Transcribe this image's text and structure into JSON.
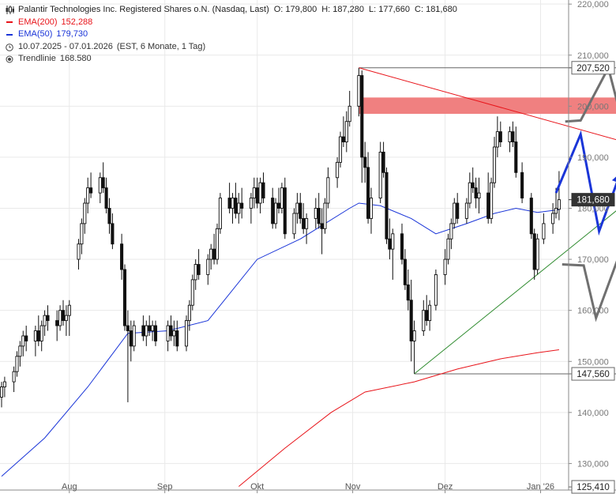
{
  "header": {
    "title": "Palantir Technologies Inc. Registered Shares o.N. (Nasdaq, Last)",
    "ohlc": [
      {
        "label": "O:",
        "value": "179,800"
      },
      {
        "label": "H:",
        "value": "187,280"
      },
      {
        "label": "L:",
        "value": "177,660"
      },
      {
        "label": "C:",
        "value": "181,680"
      }
    ]
  },
  "legend": [
    {
      "label": "EMA(200)",
      "value": "152,288",
      "color": "#e8141a",
      "icon": "red-line-icon"
    },
    {
      "label": "EMA(50)",
      "value": "179,730",
      "color": "#1a35d8",
      "icon": "blue-line-icon"
    },
    {
      "label": "10.07.2025 - 07.01.2026",
      "value": "(EST, 6 Monate, 1 Tag)",
      "color": "#444444",
      "icon": "clock-icon"
    },
    {
      "label": "Trendlinie",
      "value": "168.580",
      "color": "#444444",
      "icon": "target-icon"
    }
  ],
  "chart_data": {
    "type": "candlestick",
    "y_axis": {
      "min": 125000,
      "max": 220000,
      "side": "right",
      "ticks": [
        "130,000",
        "140,000",
        "150,000",
        "160,000",
        "170,000",
        "180,000",
        "190,000",
        "200,000",
        "210,000",
        "220,000"
      ],
      "tick_values": [
        130000,
        140000,
        150000,
        160000,
        170000,
        180000,
        190000,
        200000,
        210000,
        220000
      ]
    },
    "x_axis": {
      "start": "2025-07-10",
      "end": "2026-01-07",
      "span_end": "2026-02-12",
      "ticks": [
        {
          "date": "2025-08-01",
          "label": "Aug"
        },
        {
          "date": "2025-09-01",
          "label": "Sep"
        },
        {
          "date": "2025-10-01",
          "label": "Okt"
        },
        {
          "date": "2025-11-01",
          "label": "Nov"
        },
        {
          "date": "2025-12-01",
          "label": "Dez"
        },
        {
          "date": "2026-01-01",
          "label": "Jan '26"
        }
      ]
    },
    "price_labels": [
      {
        "value": 207520,
        "text": "207,520",
        "style": "box"
      },
      {
        "value": 181680,
        "text": "181,680",
        "style": "dark"
      },
      {
        "value": 147560,
        "text": "147,560",
        "style": "box"
      },
      {
        "value": 125410,
        "text": "125,410",
        "style": "box"
      }
    ],
    "candles": [
      [
        "2025-07-10",
        143,
        146,
        141,
        145
      ],
      [
        "2025-07-11",
        145,
        147,
        143,
        146
      ],
      [
        "2025-07-14",
        146,
        149,
        144,
        148
      ],
      [
        "2025-07-15",
        148,
        152,
        147,
        151
      ],
      [
        "2025-07-16",
        151,
        154,
        149,
        153
      ],
      [
        "2025-07-17",
        153,
        156,
        151,
        155
      ],
      [
        "2025-07-18",
        155,
        157,
        152,
        154
      ],
      [
        "2025-07-21",
        154,
        157,
        151,
        156
      ],
      [
        "2025-07-22",
        156,
        159,
        153,
        154
      ],
      [
        "2025-07-23",
        154,
        158,
        152,
        157
      ],
      [
        "2025-07-24",
        157,
        160,
        155,
        159
      ],
      [
        "2025-07-25",
        159,
        161,
        156,
        158
      ],
      [
        "2025-07-28",
        158,
        160,
        154,
        157
      ],
      [
        "2025-07-29",
        157,
        161,
        156,
        160
      ],
      [
        "2025-07-30",
        160,
        162,
        157,
        158
      ],
      [
        "2025-07-31",
        158,
        161,
        155,
        159
      ],
      [
        "2025-08-01",
        159,
        162,
        155,
        161
      ],
      [
        "2025-08-04",
        170,
        174,
        168,
        173
      ],
      [
        "2025-08-05",
        173,
        178,
        171,
        177
      ],
      [
        "2025-08-06",
        177,
        182,
        175,
        181
      ],
      [
        "2025-08-07",
        181,
        186,
        179,
        184
      ],
      [
        "2025-08-08",
        184,
        187,
        182,
        183
      ],
      [
        "2025-08-11",
        183,
        187,
        181,
        186
      ],
      [
        "2025-08-12",
        186,
        189,
        183,
        184
      ],
      [
        "2025-08-13",
        184,
        186,
        179,
        180
      ],
      [
        "2025-08-14",
        180,
        182,
        175,
        177
      ],
      [
        "2025-08-15",
        177,
        179,
        172,
        173
      ],
      [
        "2025-08-18",
        173,
        175,
        166,
        168
      ],
      [
        "2025-08-19",
        168,
        169,
        156,
        157
      ],
      [
        "2025-08-20",
        157,
        160,
        142,
        156
      ],
      [
        "2025-08-21",
        156,
        158,
        150,
        153
      ],
      [
        "2025-08-22",
        153,
        158,
        152,
        157
      ],
      [
        "2025-08-25",
        157,
        159,
        154,
        155
      ],
      [
        "2025-08-26",
        155,
        158,
        153,
        157
      ],
      [
        "2025-08-27",
        157,
        159,
        155,
        156
      ],
      [
        "2025-08-28",
        156,
        158,
        154,
        157
      ],
      [
        "2025-08-29",
        157,
        158,
        153,
        154
      ],
      [
        "2025-09-02",
        154,
        158,
        152,
        157
      ],
      [
        "2025-09-03",
        157,
        159,
        154,
        155
      ],
      [
        "2025-09-04",
        155,
        158,
        153,
        156
      ],
      [
        "2025-09-05",
        156,
        158,
        152,
        153
      ],
      [
        "2025-09-08",
        153,
        159,
        152,
        158
      ],
      [
        "2025-09-09",
        158,
        162,
        156,
        161
      ],
      [
        "2025-09-10",
        161,
        167,
        160,
        166
      ],
      [
        "2025-09-11",
        166,
        170,
        164,
        169
      ],
      [
        "2025-09-12",
        169,
        172,
        166,
        167
      ],
      [
        "2025-09-15",
        167,
        171,
        165,
        170
      ],
      [
        "2025-09-16",
        170,
        173,
        168,
        172
      ],
      [
        "2025-09-17",
        172,
        175,
        169,
        170
      ],
      [
        "2025-09-18",
        170,
        177,
        169,
        176
      ],
      [
        "2025-09-19",
        176,
        183,
        175,
        182
      ],
      [
        "2025-09-22",
        182,
        185,
        179,
        180
      ],
      [
        "2025-09-23",
        180,
        183,
        177,
        182
      ],
      [
        "2025-09-24",
        182,
        185,
        178,
        179
      ],
      [
        "2025-09-25",
        179,
        183,
        177,
        181
      ],
      [
        "2025-09-26",
        181,
        184,
        178,
        180
      ],
      [
        "2025-09-29",
        180,
        183,
        177,
        182
      ],
      [
        "2025-09-30",
        182,
        186,
        180,
        184
      ],
      [
        "2025-10-01",
        184,
        186,
        180,
        181
      ],
      [
        "2025-10-02",
        181,
        186,
        179,
        185
      ],
      [
        "2025-10-03",
        185,
        187,
        181,
        182
      ],
      [
        "2025-10-06",
        182,
        184,
        176,
        177
      ],
      [
        "2025-10-07",
        177,
        182,
        176,
        181
      ],
      [
        "2025-10-08",
        181,
        184,
        179,
        180
      ],
      [
        "2025-10-09",
        180,
        185,
        179,
        184
      ],
      [
        "2025-10-10",
        184,
        186,
        174,
        175
      ],
      [
        "2025-10-13",
        175,
        180,
        174,
        179
      ],
      [
        "2025-10-14",
        179,
        183,
        177,
        181
      ],
      [
        "2025-10-15",
        181,
        183,
        177,
        178
      ],
      [
        "2025-10-16",
        178,
        181,
        175,
        176
      ],
      [
        "2025-10-17",
        176,
        179,
        173,
        178
      ],
      [
        "2025-10-20",
        178,
        182,
        176,
        180
      ],
      [
        "2025-10-21",
        180,
        183,
        176,
        177
      ],
      [
        "2025-10-22",
        177,
        180,
        171,
        176
      ],
      [
        "2025-10-23",
        176,
        182,
        175,
        181
      ],
      [
        "2025-10-24",
        181,
        188,
        180,
        186
      ],
      [
        "2025-10-27",
        186,
        190,
        184,
        189
      ],
      [
        "2025-10-28",
        189,
        195,
        188,
        194
      ],
      [
        "2025-10-29",
        194,
        198,
        192,
        193
      ],
      [
        "2025-10-30",
        193,
        199,
        191,
        197
      ],
      [
        "2025-10-31",
        197,
        203,
        196,
        200
      ],
      [
        "2025-11-03",
        200,
        207.5,
        198,
        206
      ],
      [
        "2025-11-04",
        206,
        207,
        185,
        190
      ],
      [
        "2025-11-05",
        190,
        193,
        185,
        188
      ],
      [
        "2025-11-06",
        188,
        191,
        177,
        178
      ],
      [
        "2025-11-07",
        178,
        184,
        175,
        182
      ],
      [
        "2025-11-10",
        182,
        193,
        181,
        191
      ],
      [
        "2025-11-11",
        191,
        193,
        186,
        187
      ],
      [
        "2025-11-12",
        187,
        188,
        173,
        174
      ],
      [
        "2025-11-13",
        174,
        178,
        170,
        172
      ],
      [
        "2025-11-14",
        172,
        176,
        166,
        175
      ],
      [
        "2025-11-17",
        175,
        177,
        169,
        170
      ],
      [
        "2025-11-18",
        170,
        172,
        164,
        165
      ],
      [
        "2025-11-19",
        165,
        168,
        160,
        162
      ],
      [
        "2025-11-20",
        162,
        166,
        150,
        154
      ],
      [
        "2025-11-21",
        154,
        158,
        147.6,
        156
      ],
      [
        "2025-11-24",
        156,
        162,
        155,
        160
      ],
      [
        "2025-11-25",
        160,
        163,
        157,
        158
      ],
      [
        "2025-11-26",
        158,
        162,
        156,
        161
      ],
      [
        "2025-11-28",
        161,
        168,
        160,
        167
      ],
      [
        "2025-12-01",
        167,
        172,
        165,
        170
      ],
      [
        "2025-12-02",
        170,
        175,
        169,
        174
      ],
      [
        "2025-12-03",
        174,
        178,
        172,
        177
      ],
      [
        "2025-12-04",
        177,
        182,
        176,
        181
      ],
      [
        "2025-12-05",
        181,
        183,
        177,
        178
      ],
      [
        "2025-12-08",
        178,
        182,
        177,
        181
      ],
      [
        "2025-12-09",
        181,
        187,
        180,
        185
      ],
      [
        "2025-12-10",
        185,
        188,
        183,
        184
      ],
      [
        "2025-12-11",
        184,
        186,
        180,
        182
      ],
      [
        "2025-12-12",
        182,
        186,
        179,
        183
      ],
      [
        "2025-12-15",
        183,
        187,
        177,
        178
      ],
      [
        "2025-12-16",
        178,
        186,
        177,
        185
      ],
      [
        "2025-12-17",
        185,
        194,
        184,
        192
      ],
      [
        "2025-12-18",
        192,
        198,
        190,
        195
      ],
      [
        "2025-12-19",
        195,
        197,
        192,
        193
      ],
      [
        "2025-12-22",
        193,
        196,
        191,
        195
      ],
      [
        "2025-12-23",
        195,
        197,
        192,
        193
      ],
      [
        "2025-12-24",
        193,
        196,
        186,
        187
      ],
      [
        "2025-12-26",
        187,
        189,
        181,
        182
      ],
      [
        "2025-12-29",
        182,
        183,
        174,
        175
      ],
      [
        "2025-12-30",
        175,
        176,
        166,
        168
      ],
      [
        "2025-12-31",
        168,
        175,
        167,
        174
      ],
      [
        "2026-01-02",
        174,
        179,
        173,
        177
      ],
      [
        "2026-01-05",
        177,
        181,
        175,
        179
      ],
      [
        "2026-01-06",
        179,
        184,
        178,
        180
      ],
      [
        "2026-01-07",
        179.8,
        187.28,
        177.66,
        181.68
      ]
    ],
    "ema50": [
      [
        "2025-07-10",
        127.5
      ],
      [
        "2025-07-24",
        135
      ],
      [
        "2025-08-07",
        145
      ],
      [
        "2025-08-20",
        155.5
      ],
      [
        "2025-09-02",
        156
      ],
      [
        "2025-09-15",
        158
      ],
      [
        "2025-10-01",
        170
      ],
      [
        "2025-10-15",
        174
      ],
      [
        "2025-10-31",
        180
      ],
      [
        "2025-11-03",
        181
      ],
      [
        "2025-11-10",
        180.5
      ],
      [
        "2025-11-20",
        178
      ],
      [
        "2025-11-28",
        175
      ],
      [
        "2025-12-08",
        177
      ],
      [
        "2025-12-17",
        179
      ],
      [
        "2025-12-24",
        180
      ],
      [
        "2025-12-31",
        179.2
      ],
      [
        "2026-01-07",
        179.73
      ]
    ],
    "ema200": [
      [
        "2025-09-25",
        125.5
      ],
      [
        "2025-10-10",
        133
      ],
      [
        "2025-10-25",
        140
      ],
      [
        "2025-11-05",
        144
      ],
      [
        "2025-11-21",
        146
      ],
      [
        "2025-12-05",
        148.5
      ],
      [
        "2025-12-19",
        150.5
      ],
      [
        "2025-12-31",
        151.7
      ],
      [
        "2026-01-07",
        152.29
      ]
    ],
    "lines": [
      {
        "name": "resistance-trendline",
        "from": [
          "2025-11-03",
          207.52
        ],
        "to": [
          "2026-02-12",
          190.5
        ],
        "color": "#e8141a"
      },
      {
        "name": "support-trendline",
        "from": [
          "2025-11-21",
          147.56
        ],
        "to": [
          "2026-02-12",
          188
        ],
        "color": "#2e8b2e"
      },
      {
        "name": "high-level-line",
        "from": [
          "2025-11-03",
          207.52
        ],
        "to": [
          "2026-02-12",
          207.52
        ],
        "color": "#666666"
      },
      {
        "name": "low-level-line",
        "from": [
          "2025-11-21",
          147.56
        ],
        "to": [
          "2026-02-12",
          147.56
        ],
        "color": "#666666"
      }
    ],
    "resistance_zone": {
      "from": "2025-11-03",
      "to": "2026-02-12",
      "low": 198.5,
      "high": 201.7,
      "color": "#f08080"
    },
    "scenarios": [
      {
        "name": "bullish-scenario-arrow",
        "color": "#707070",
        "points": [
          [
            "2026-01-09",
            197
          ],
          [
            "2026-01-14",
            197.2
          ],
          [
            "2026-01-23",
            207.5
          ],
          [
            "2026-01-29",
            193.5
          ],
          [
            "2026-02-08",
            218.5
          ]
        ]
      },
      {
        "name": "triangle-scenario-arrow",
        "color": "#1a35d8",
        "points": [
          [
            "2026-01-06",
            183
          ],
          [
            "2026-01-14",
            194.5
          ],
          [
            "2026-01-20",
            175.5
          ],
          [
            "2026-01-27",
            187
          ]
        ]
      },
      {
        "name": "bearish-scenario-arrow",
        "color": "#707070",
        "points": [
          [
            "2026-01-08",
            169
          ],
          [
            "2026-01-15",
            168.8
          ],
          [
            "2026-01-19",
            158.5
          ],
          [
            "2026-01-30",
            176.5
          ],
          [
            "2026-02-02",
            147.5
          ],
          [
            "2026-02-06",
            157.5
          ],
          [
            "2026-02-10",
            140
          ]
        ]
      }
    ]
  }
}
